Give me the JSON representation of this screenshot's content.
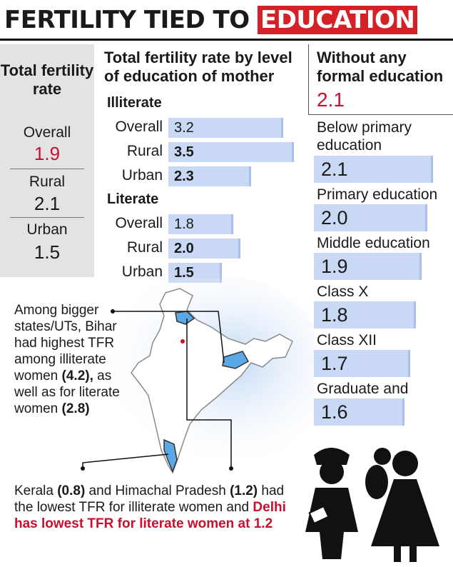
{
  "title": {
    "part1": "FERTILITY TIED TO ",
    "part2": "EDUCATION"
  },
  "total_tfr": {
    "heading": "Total fertility rate",
    "overall": {
      "label": "Overall",
      "value": "1.9"
    },
    "rural": {
      "label": "Rural",
      "value": "2.1"
    },
    "urban": {
      "label": "Urban",
      "value": "1.5"
    }
  },
  "chart_data": [
    {
      "type": "bar",
      "title": "Total fertility rate by level of education of mother",
      "groups": [
        {
          "name": "Illiterate",
          "categories": [
            "Overall",
            "Rural",
            "Urban"
          ],
          "values": [
            3.2,
            3.5,
            2.3
          ]
        },
        {
          "name": "Literate",
          "categories": [
            "Overall",
            "Rural",
            "Urban"
          ],
          "values": [
            1.8,
            2.0,
            1.5
          ]
        }
      ],
      "value_labels": [
        "3.2",
        "3.5",
        "2.3",
        "1.8",
        "2.0",
        "1.5"
      ],
      "xlim": [
        0,
        3.5
      ]
    },
    {
      "type": "bar",
      "categories": [
        "Without any formal education",
        "Below primary education",
        "Primary education",
        "Middle education",
        "Class X",
        "Class XII",
        "Graduate and above"
      ],
      "values": [
        2.1,
        2.1,
        2.0,
        1.9,
        1.8,
        1.7,
        1.6
      ],
      "value_labels": [
        "2.1",
        "2.1",
        "2.0",
        "1.9",
        "1.8",
        "1.7",
        "1.6"
      ],
      "xlim": [
        0,
        2.1
      ]
    }
  ],
  "notes": {
    "note1_a": "Among bigger states/UTs, Bihar had highest TFR among illiterate women ",
    "note1_b": "(4.2),",
    "note1_c": " as well as for literate women ",
    "note1_d": "(2.8)",
    "note2_a": "Kerala ",
    "note2_b": "(0.8)",
    "note2_c": " and Himachal Pradesh ",
    "note2_d": "(1.2)",
    "note2_e": " had the lowest TFR for illiterate women and ",
    "note2_f": "Delhi has lowest TFR for literate women at 1.2"
  },
  "colors": {
    "accent": "#d42027",
    "bar": "#c9d8f5",
    "highlight_state": "#5aa9e6"
  },
  "icons": [
    "india-map-icon",
    "nurse-icon",
    "mother-child-icon"
  ]
}
